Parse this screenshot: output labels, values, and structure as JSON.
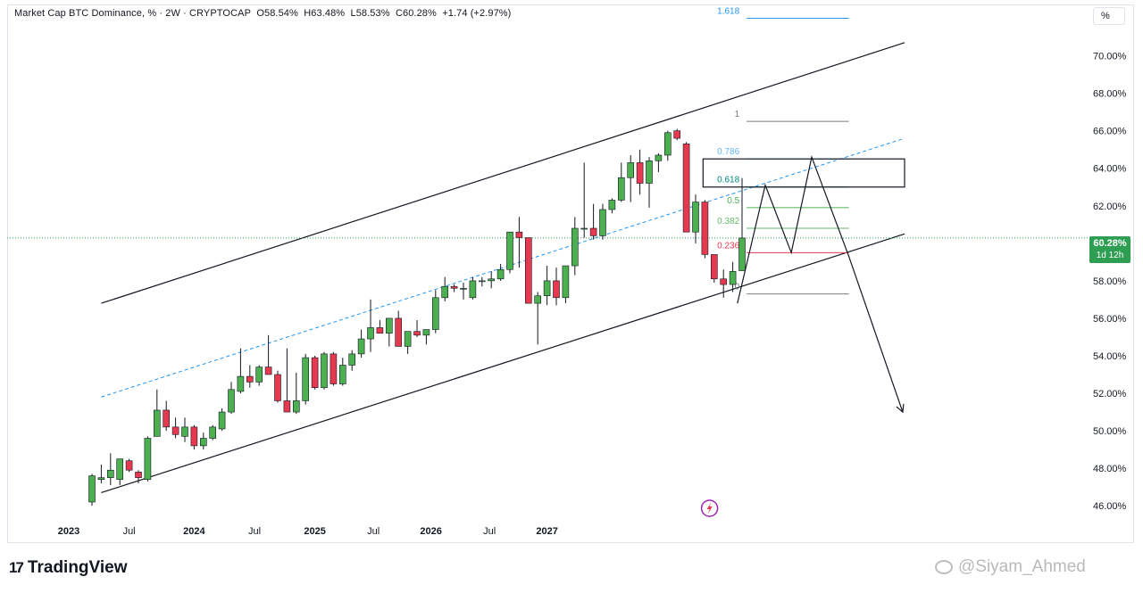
{
  "header": {
    "symbol_line": "Market Cap BTC Dominance, % · 2W · CRYPTOCAP",
    "open": "O58.54%",
    "high": "H63.48%",
    "low": "L58.53%",
    "close": "C60.28%",
    "change": "+1.74 (+2.97%)",
    "unit_button": "%"
  },
  "price_badge": {
    "value": "60.28%",
    "countdown": "1d 12h"
  },
  "footer": {
    "brand": "TradingView",
    "watermark": "@Siyam_Ahmed"
  },
  "colors": {
    "up": "#4caf50",
    "down": "#e53950",
    "channel": "#131722",
    "midline": "#2196f3",
    "current_price": "#2e9e52"
  },
  "chart_data": {
    "type": "candlestick",
    "title": "Market Cap BTC Dominance, %",
    "interval": "2W",
    "y_axis": {
      "ticks": [
        46,
        48,
        50,
        52,
        54,
        56,
        58,
        60,
        62,
        64,
        66,
        68,
        70
      ],
      "tick_labels": [
        "46.00%",
        "48.00%",
        "50.00%",
        "52.00%",
        "54.00%",
        "56.00%",
        "58.00%",
        "60.00%",
        "62.00%",
        "64.00%",
        "66.00%",
        "68.00%",
        "70.00%"
      ],
      "range": [
        45.2,
        72.5
      ]
    },
    "x_axis": {
      "labels": [
        "2023",
        "Jul",
        "2024",
        "Jul",
        "2025",
        "Jul",
        "2026",
        "Jul",
        "2027"
      ],
      "label_idx": [
        -2.5,
        4,
        11,
        17.5,
        24,
        30.3,
        36.5,
        42.8,
        49
      ]
    },
    "candles": [
      {
        "o": 46.2,
        "h": 47.7,
        "l": 46.0,
        "c": 47.6
      },
      {
        "o": 47.4,
        "h": 48.2,
        "l": 47.2,
        "c": 47.5
      },
      {
        "o": 47.5,
        "h": 48.8,
        "l": 47.1,
        "c": 47.9
      },
      {
        "o": 47.4,
        "h": 48.5,
        "l": 47.1,
        "c": 48.5
      },
      {
        "o": 48.4,
        "h": 48.5,
        "l": 47.8,
        "c": 47.9
      },
      {
        "o": 47.8,
        "h": 47.9,
        "l": 47.2,
        "c": 47.5
      },
      {
        "o": 47.4,
        "h": 49.7,
        "l": 47.3,
        "c": 49.6
      },
      {
        "o": 49.7,
        "h": 52.2,
        "l": 49.7,
        "c": 51.1
      },
      {
        "o": 51.1,
        "h": 51.6,
        "l": 50.0,
        "c": 50.2
      },
      {
        "o": 50.2,
        "h": 50.7,
        "l": 49.6,
        "c": 49.8
      },
      {
        "o": 49.7,
        "h": 50.7,
        "l": 49.4,
        "c": 50.2
      },
      {
        "o": 50.2,
        "h": 50.3,
        "l": 49.0,
        "c": 49.2
      },
      {
        "o": 49.2,
        "h": 49.9,
        "l": 49.0,
        "c": 49.6
      },
      {
        "o": 49.6,
        "h": 50.3,
        "l": 49.5,
        "c": 50.2
      },
      {
        "o": 50.1,
        "h": 51.2,
        "l": 50.0,
        "c": 51.0
      },
      {
        "o": 51.0,
        "h": 52.6,
        "l": 50.9,
        "c": 52.2
      },
      {
        "o": 52.1,
        "h": 54.4,
        "l": 52.0,
        "c": 52.9
      },
      {
        "o": 52.9,
        "h": 53.5,
        "l": 52.3,
        "c": 52.6
      },
      {
        "o": 52.6,
        "h": 53.5,
        "l": 52.4,
        "c": 53.4
      },
      {
        "o": 53.4,
        "h": 55.1,
        "l": 53.2,
        "c": 53.0
      },
      {
        "o": 53.0,
        "h": 53.2,
        "l": 51.5,
        "c": 51.6
      },
      {
        "o": 51.6,
        "h": 54.4,
        "l": 51.1,
        "c": 51.0
      },
      {
        "o": 51.0,
        "h": 53.1,
        "l": 50.9,
        "c": 51.6
      },
      {
        "o": 51.6,
        "h": 54.1,
        "l": 51.4,
        "c": 53.9
      },
      {
        "o": 53.9,
        "h": 54.0,
        "l": 52.2,
        "c": 52.3
      },
      {
        "o": 52.3,
        "h": 54.2,
        "l": 52.2,
        "c": 54.1
      },
      {
        "o": 54.1,
        "h": 54.2,
        "l": 52.4,
        "c": 52.5
      },
      {
        "o": 52.5,
        "h": 53.9,
        "l": 52.4,
        "c": 53.5
      },
      {
        "o": 53.5,
        "h": 54.3,
        "l": 53.2,
        "c": 54.1
      },
      {
        "o": 54.1,
        "h": 55.4,
        "l": 53.9,
        "c": 54.9
      },
      {
        "o": 54.9,
        "h": 57.0,
        "l": 54.2,
        "c": 55.5
      },
      {
        "o": 55.5,
        "h": 55.9,
        "l": 55.2,
        "c": 55.2
      },
      {
        "o": 55.2,
        "h": 56.0,
        "l": 54.5,
        "c": 56.0
      },
      {
        "o": 56.0,
        "h": 56.4,
        "l": 54.5,
        "c": 54.5
      },
      {
        "o": 54.5,
        "h": 55.2,
        "l": 54.1,
        "c": 55.3
      },
      {
        "o": 55.3,
        "h": 55.9,
        "l": 55.0,
        "c": 55.1
      },
      {
        "o": 55.1,
        "h": 55.4,
        "l": 54.6,
        "c": 55.4
      },
      {
        "o": 55.4,
        "h": 57.5,
        "l": 55.2,
        "c": 57.1
      },
      {
        "o": 57.1,
        "h": 58.2,
        "l": 56.9,
        "c": 57.7
      },
      {
        "o": 57.7,
        "h": 57.8,
        "l": 57.4,
        "c": 57.6
      },
      {
        "o": 57.6,
        "h": 57.9,
        "l": 57.0,
        "c": 57.6
      },
      {
        "o": 57.1,
        "h": 58.2,
        "l": 57.0,
        "c": 58.0
      },
      {
        "o": 58.0,
        "h": 58.2,
        "l": 57.7,
        "c": 58.0
      },
      {
        "o": 58.0,
        "h": 58.5,
        "l": 57.6,
        "c": 58.1
      },
      {
        "o": 58.1,
        "h": 58.9,
        "l": 58.0,
        "c": 58.6
      },
      {
        "o": 58.6,
        "h": 60.4,
        "l": 58.4,
        "c": 60.6
      },
      {
        "o": 60.6,
        "h": 61.4,
        "l": 58.7,
        "c": 60.3
      },
      {
        "o": 60.3,
        "h": 60.3,
        "l": 56.8,
        "c": 56.8
      },
      {
        "o": 56.8,
        "h": 57.4,
        "l": 54.6,
        "c": 57.2
      },
      {
        "o": 57.2,
        "h": 58.8,
        "l": 56.7,
        "c": 58.0
      },
      {
        "o": 58.0,
        "h": 58.7,
        "l": 56.7,
        "c": 57.1
      },
      {
        "o": 57.1,
        "h": 58.8,
        "l": 56.8,
        "c": 58.8
      },
      {
        "o": 58.8,
        "h": 61.4,
        "l": 58.3,
        "c": 60.8
      },
      {
        "o": 60.8,
        "h": 64.3,
        "l": 60.3,
        "c": 60.8
      },
      {
        "o": 60.8,
        "h": 62.1,
        "l": 60.2,
        "c": 60.4
      },
      {
        "o": 60.4,
        "h": 62.1,
        "l": 60.2,
        "c": 61.8
      },
      {
        "o": 61.8,
        "h": 62.4,
        "l": 61.6,
        "c": 62.3
      },
      {
        "o": 62.3,
        "h": 64.3,
        "l": 62.2,
        "c": 63.5
      },
      {
        "o": 63.5,
        "h": 64.7,
        "l": 62.2,
        "c": 64.3
      },
      {
        "o": 64.3,
        "h": 65.0,
        "l": 62.6,
        "c": 63.2
      },
      {
        "o": 63.2,
        "h": 64.6,
        "l": 61.9,
        "c": 64.4
      },
      {
        "o": 64.4,
        "h": 64.8,
        "l": 63.8,
        "c": 64.7
      },
      {
        "o": 64.7,
        "h": 66.0,
        "l": 64.4,
        "c": 65.9
      },
      {
        "o": 66.0,
        "h": 66.1,
        "l": 65.5,
        "c": 65.6
      },
      {
        "o": 65.3,
        "h": 65.4,
        "l": 60.6,
        "c": 60.6
      },
      {
        "o": 60.6,
        "h": 62.6,
        "l": 60.0,
        "c": 62.2
      },
      {
        "o": 62.2,
        "h": 62.3,
        "l": 59.2,
        "c": 59.4
      },
      {
        "o": 59.4,
        "h": 59.4,
        "l": 57.9,
        "c": 58.1
      },
      {
        "o": 58.1,
        "h": 58.6,
        "l": 57.1,
        "c": 57.8
      },
      {
        "o": 57.8,
        "h": 59.0,
        "l": 57.4,
        "c": 58.5
      },
      {
        "o": 58.54,
        "h": 63.48,
        "l": 58.53,
        "c": 60.28
      }
    ],
    "current_price": 60.28,
    "fibonacci": [
      {
        "level": "1.618",
        "price": 72.0
      },
      {
        "level": "1",
        "price": 66.5
      },
      {
        "level": "0.786",
        "price": 64.5
      },
      {
        "level": "0.618",
        "price": 63.0
      },
      {
        "level": "0.5",
        "price": 61.9
      },
      {
        "level": "0.382",
        "price": 60.8
      },
      {
        "level": "0.236",
        "price": 59.5
      },
      {
        "level": "0",
        "price": 57.3
      }
    ],
    "annotations": [
      "ascending channel",
      "channel midline",
      "resistance zone",
      "projected path"
    ]
  }
}
